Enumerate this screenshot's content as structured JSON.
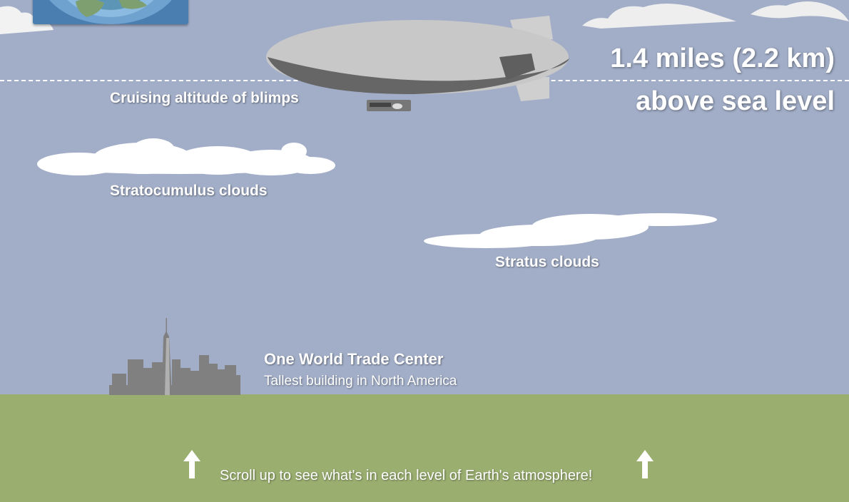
{
  "altitude": {
    "line1": "1.4 miles (2.2 km)",
    "line2": "above sea level"
  },
  "labels": {
    "blimps": "Cruising altitude of blimps",
    "stratocumulus": "Stratocumulus clouds",
    "stratus": "Stratus clouds",
    "wtc_title": "One World Trade Center",
    "wtc_sub": "Tallest building in North America"
  },
  "footer": {
    "scroll_text": "Scroll up to see what's in each level of Earth's atmosphere!"
  },
  "colors": {
    "sky": "#a2aec8",
    "ground": "#9aae70",
    "cloud": "#ffffff",
    "building": "#808080",
    "blimp_body": "#cccccc",
    "blimp_shadow": "#666666"
  },
  "icons": [
    "globe-icon",
    "blimp-icon",
    "cloud-icon",
    "skyline-icon",
    "arrow-up-icon"
  ]
}
